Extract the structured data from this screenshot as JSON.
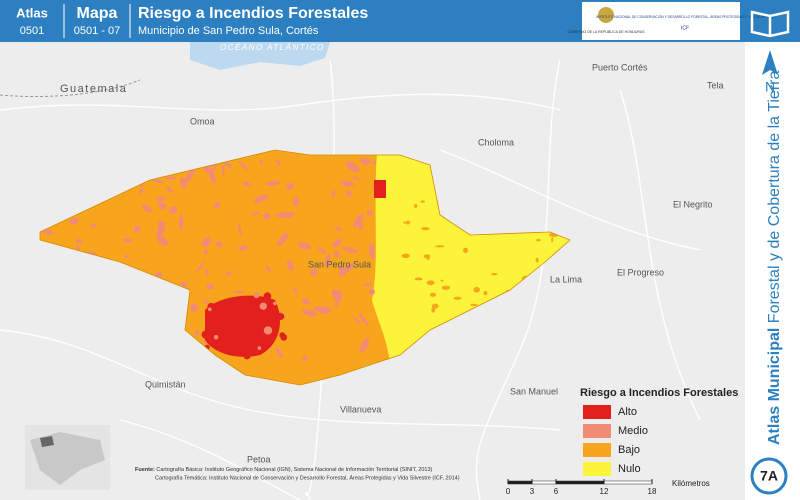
{
  "header": {
    "atlas_label": "Atlas",
    "atlas_code": "0501",
    "map_label": "Mapa",
    "map_code": "0501 - 07",
    "title": "Riesgo a Incendios Forestales",
    "subtitle": "Municipio de San Pedro Sula, Cortés"
  },
  "logos": {
    "government": "GOBIERNO DE LA REPÚBLICA DE HONDURAS",
    "institute": "INSTITUTO NACIONAL DE CONSERVACIÓN Y DESARROLLO FORESTAL, ÁREAS PROTEGIDAS Y VIDA SILVESTRE",
    "institute_short": "ICF"
  },
  "places": {
    "ocean": "OCÉANO ATLÁNTICO",
    "guatemala": "Guatemala",
    "omoa": "Omoa",
    "choloma": "Choloma",
    "puerto_cortes": "Puerto Cortés",
    "tela": "Tela",
    "el_negrito": "El Negrito",
    "el_progreso": "El Progreso",
    "la_lima": "La Lima",
    "san_pedro_sula": "San Pedro Sula",
    "quimistan": "Quimistán",
    "san_manuel": "San Manuel",
    "villanueva": "Villanueva",
    "petoa": "Petoa"
  },
  "legend": {
    "title": "Riesgo a Incendios Forestales",
    "items": [
      {
        "label": "Alto",
        "color": "#e3211c"
      },
      {
        "label": "Medio",
        "color": "#f28b74"
      },
      {
        "label": "Bajo",
        "color": "#f7a51d"
      },
      {
        "label": "Nulo",
        "color": "#fbf43a"
      }
    ]
  },
  "scale": {
    "ticks": [
      0,
      3,
      6,
      12,
      18
    ],
    "unit": "Kilómetros"
  },
  "sources": {
    "label": "Fuente:",
    "basic": "Cartografía Básica: Instituto Geográfico Nacional (IGN), Sistema Nacional de Información Territorial (SINIT, 2013)",
    "thematic": "Cartografía Temática: Instituto Nacional de Conservación y Desarrollo Forestal, Áreas Protegidas y Vida Silvestre (ICF, 2014)"
  },
  "side": {
    "bold": "Atlas Municipal",
    "rest": "Forestal y de Cobertura de la Tierra",
    "north": "N",
    "badge": "7A"
  }
}
